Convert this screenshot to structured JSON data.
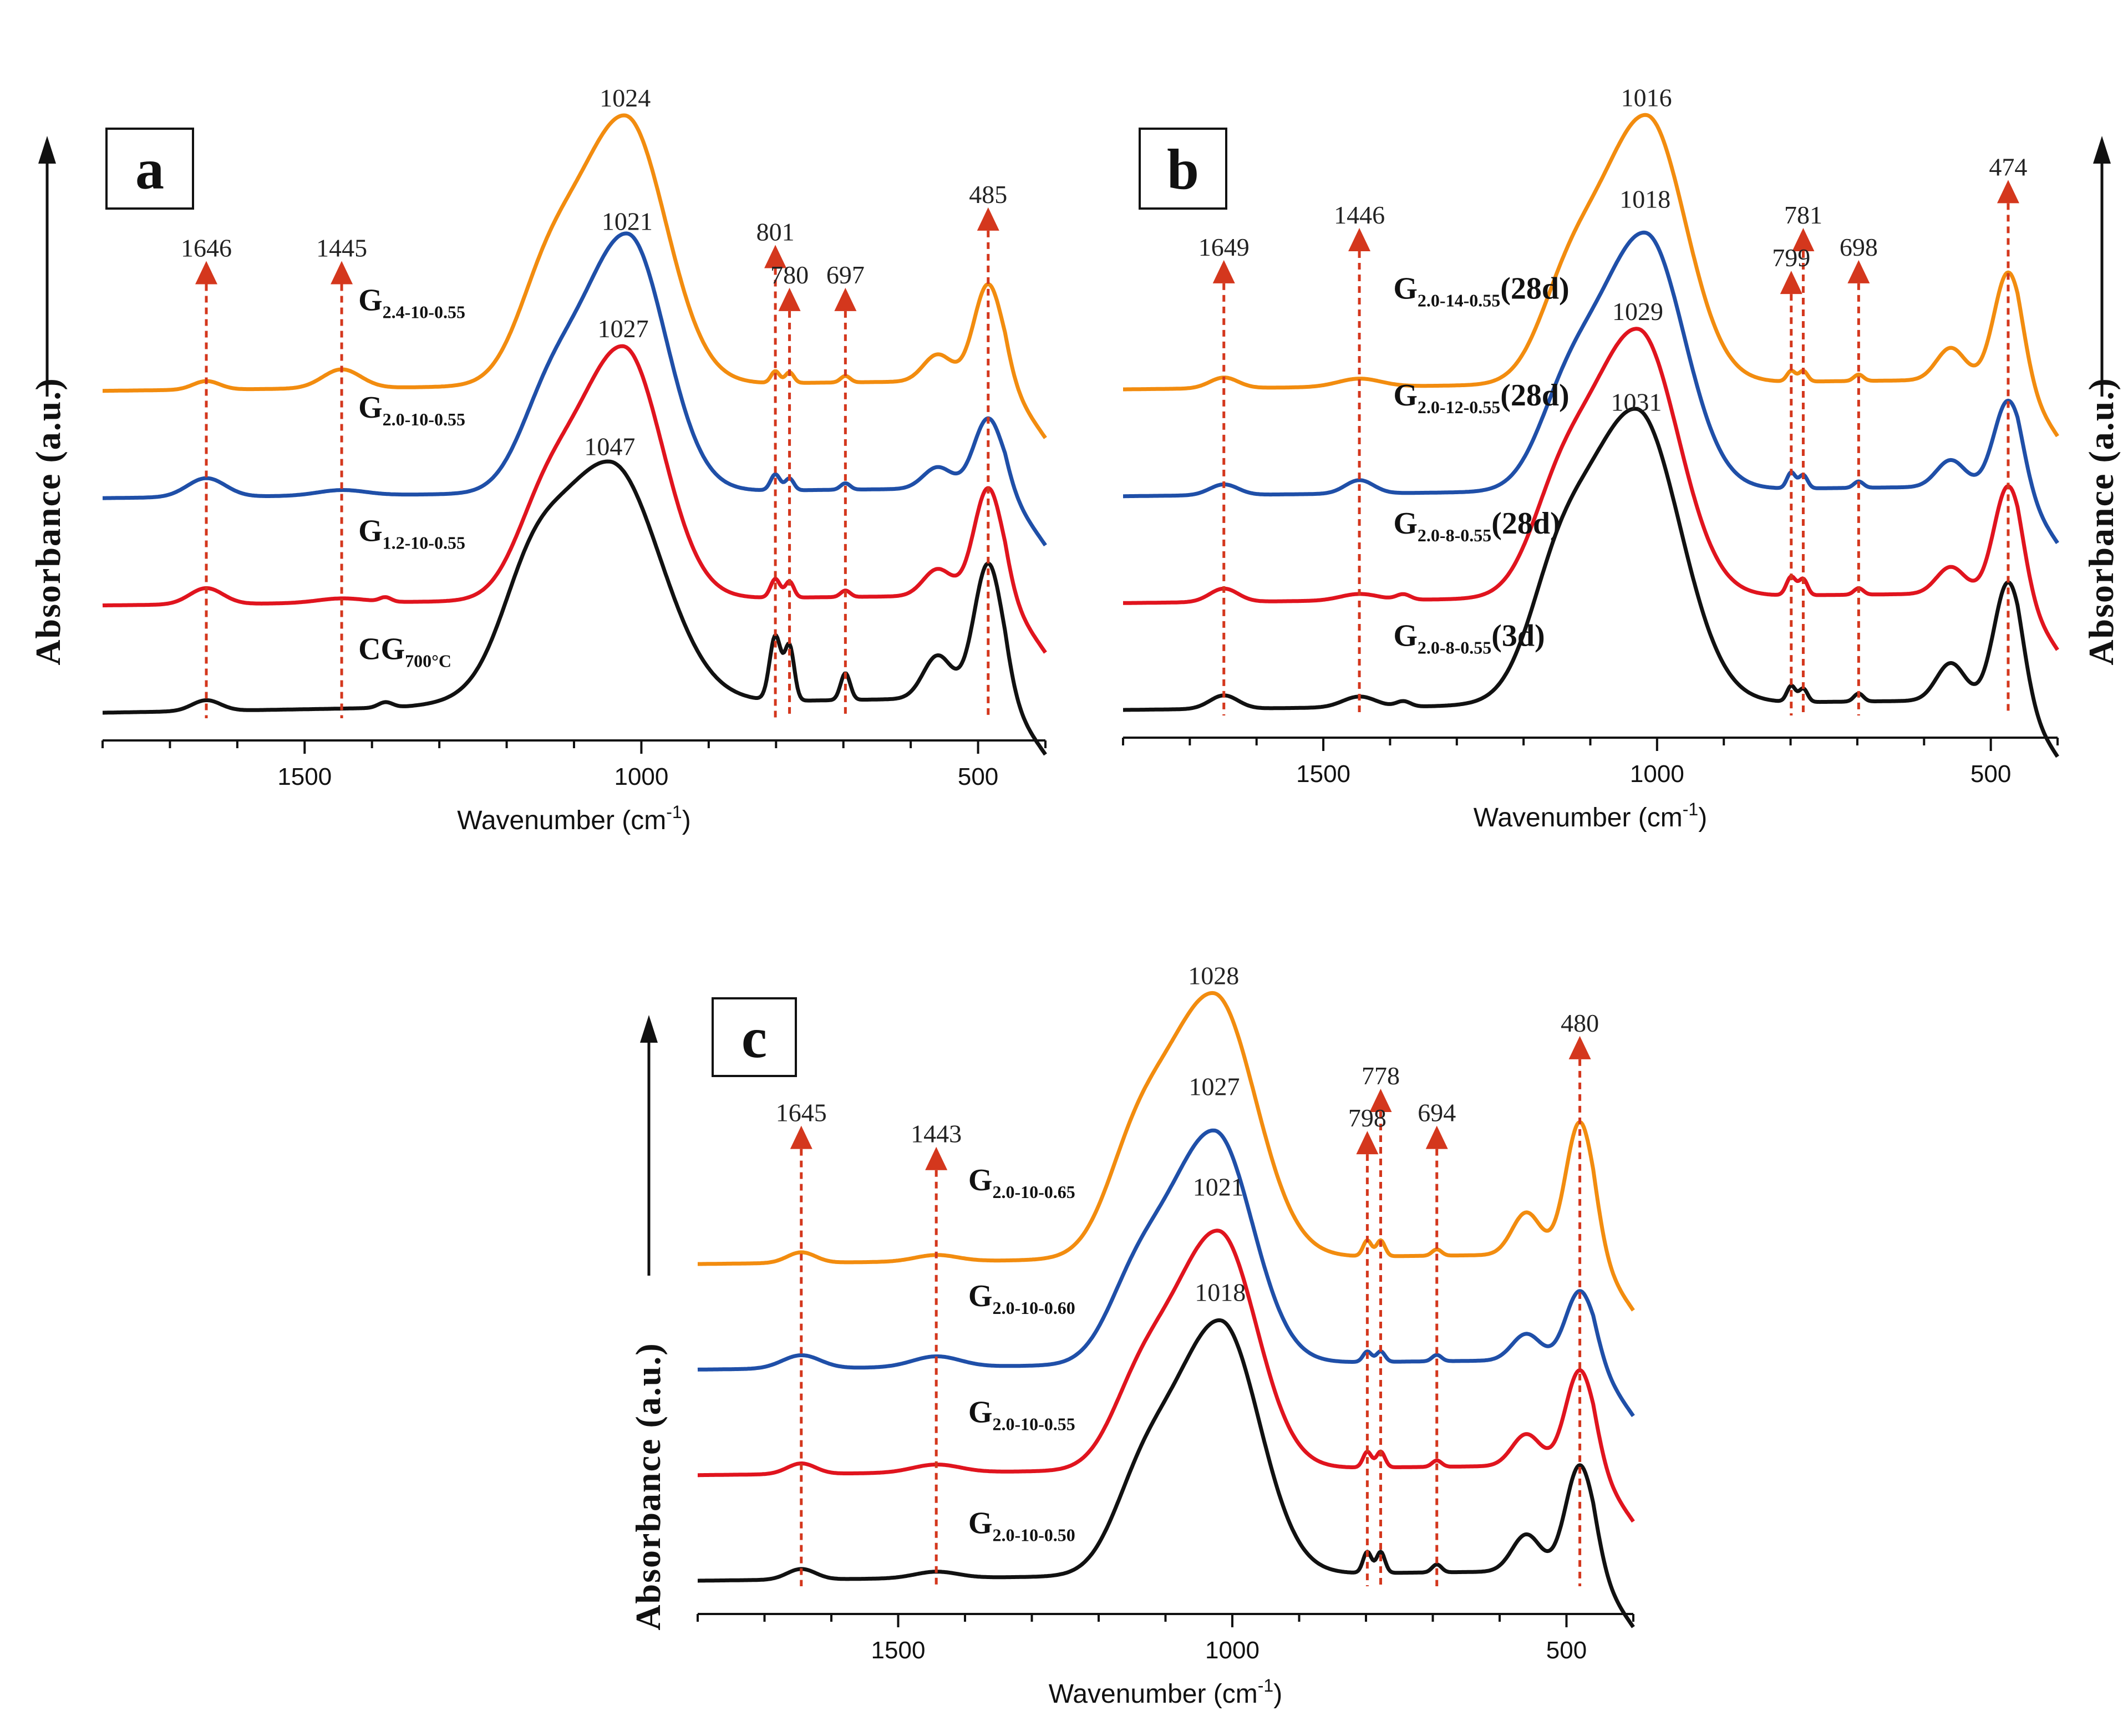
{
  "chart_data": [
    {
      "type": "line",
      "panel_label": "a",
      "xlabel": "Wavenumber (cm",
      "xlabel_sup": "-1",
      "xlabel_end": ")",
      "ylabel": "Absorbance (a.u.)",
      "xlim": [
        1800,
        400
      ],
      "x_reversed": true,
      "xticks": [
        1500,
        1000,
        500
      ],
      "marker_positions": [
        1646,
        1445,
        801,
        780,
        697,
        485
      ],
      "peak_labels": [
        {
          "text": "1646",
          "x": 1646,
          "y": 0.84
        },
        {
          "text": "1445",
          "x": 1445,
          "y": 0.84
        },
        {
          "text": "801",
          "x": 801,
          "y": 0.87
        },
        {
          "text": "780",
          "x": 780,
          "y": 0.79
        },
        {
          "text": "697",
          "x": 697,
          "y": 0.79
        },
        {
          "text": "485",
          "x": 485,
          "y": 0.94
        },
        {
          "text": "1024",
          "x": 1024,
          "y": 1.13
        },
        {
          "text": "1021",
          "x": 1021,
          "y": 0.9
        },
        {
          "text": "1027",
          "x": 1027,
          "y": 0.7
        },
        {
          "text": "1047",
          "x": 1047,
          "y": 0.48
        }
      ],
      "series": [
        {
          "name": "G",
          "subscript": "2.4-10-0.55",
          "color": "#f28c0f",
          "offset": 0.6,
          "peak": 1024,
          "peak_height": 0.5,
          "width": 85,
          "base_slope": 0.02,
          "bands": [
            [
              1646,
              0.016,
              28
            ],
            [
              1445,
              0.035,
              40
            ],
            [
              801,
              0.022,
              9
            ],
            [
              780,
              0.02,
              9
            ],
            [
              697,
              0.012,
              10
            ],
            [
              485,
              0.18,
              30
            ],
            [
              560,
              0.05,
              30
            ]
          ],
          "label_x": 1445,
          "label_y": 0.75
        },
        {
          "name": "G",
          "subscript": "2.0-10-0.55",
          "color": "#1f4fa8",
          "offset": 0.4,
          "peak": 1021,
          "peak_height": 0.48,
          "width": 80,
          "base_slope": 0.02,
          "bands": [
            [
              1646,
              0.035,
              40
            ],
            [
              1445,
              0.01,
              50
            ],
            [
              801,
              0.03,
              10
            ],
            [
              780,
              0.022,
              9
            ],
            [
              697,
              0.012,
              10
            ],
            [
              485,
              0.13,
              30
            ],
            [
              560,
              0.04,
              30
            ]
          ],
          "label_x": 1445,
          "label_y": 0.55
        },
        {
          "name": "G",
          "subscript": "1.2-10-0.55",
          "color": "#e0141e",
          "offset": 0.2,
          "peak": 1027,
          "peak_height": 0.47,
          "width": 82,
          "base_slope": 0.02,
          "bands": [
            [
              1646,
              0.03,
              35
            ],
            [
              1445,
              0.008,
              50
            ],
            [
              1380,
              0.008,
              12
            ],
            [
              801,
              0.035,
              10
            ],
            [
              780,
              0.03,
              9
            ],
            [
              697,
              0.012,
              10
            ],
            [
              485,
              0.2,
              30
            ],
            [
              560,
              0.05,
              30
            ]
          ],
          "label_x": 1445,
          "label_y": 0.32
        },
        {
          "name": "CG",
          "subscript": "700°C",
          "color": "#111111",
          "offset": 0.0,
          "peak": 1047,
          "peak_height": 0.45,
          "width": 105,
          "base_slope": 0.03,
          "bands": [
            [
              1646,
              0.02,
              30
            ],
            [
              1380,
              0.01,
              15
            ],
            [
              801,
              0.12,
              12
            ],
            [
              780,
              0.1,
              10
            ],
            [
              697,
              0.05,
              10
            ],
            [
              485,
              0.25,
              30
            ],
            [
              560,
              0.08,
              30
            ]
          ],
          "label_x": 1445,
          "label_y": 0.1
        }
      ]
    },
    {
      "type": "line",
      "panel_label": "b",
      "xlabel": "Wavenumber (cm",
      "xlabel_sup": "-1",
      "xlabel_end": ")",
      "ylabel": "Absorbance (a.u.)",
      "xlim": [
        1800,
        400
      ],
      "x_reversed": true,
      "xticks": [
        1500,
        1000,
        500
      ],
      "marker_positions": [
        1649,
        1446,
        799,
        781,
        698,
        474
      ],
      "peak_labels": [
        {
          "text": "1649",
          "x": 1649,
          "y": 0.84
        },
        {
          "text": "1446",
          "x": 1446,
          "y": 0.9
        },
        {
          "text": "799",
          "x": 799,
          "y": 0.82
        },
        {
          "text": "781",
          "x": 781,
          "y": 0.9
        },
        {
          "text": "698",
          "x": 698,
          "y": 0.84
        },
        {
          "text": "474",
          "x": 474,
          "y": 0.99
        },
        {
          "text": "1016",
          "x": 1016,
          "y": 1.13
        },
        {
          "text": "1018",
          "x": 1018,
          "y": 0.94
        },
        {
          "text": "1029",
          "x": 1029,
          "y": 0.73
        },
        {
          "text": "1031",
          "x": 1031,
          "y": 0.56
        }
      ],
      "series": [
        {
          "name": "G",
          "subscript": "2.0-14-0.55",
          "tail": "(28d)",
          "color": "#f28c0f",
          "offset": 0.6,
          "peak": 1016,
          "peak_height": 0.5,
          "width": 82,
          "base_slope": 0.02,
          "bands": [
            [
              1649,
              0.02,
              30
            ],
            [
              1446,
              0.015,
              45
            ],
            [
              799,
              0.02,
              9
            ],
            [
              781,
              0.02,
              9
            ],
            [
              698,
              0.012,
              10
            ],
            [
              474,
              0.2,
              30
            ],
            [
              560,
              0.06,
              30
            ]
          ],
          "label_x": 1420,
          "label_y": 0.77
        },
        {
          "name": "G",
          "subscript": "2.0-12-0.55",
          "tail": "(28d)",
          "color": "#1f4fa8",
          "offset": 0.4,
          "peak": 1018,
          "peak_height": 0.48,
          "width": 82,
          "base_slope": 0.02,
          "bands": [
            [
              1649,
              0.02,
              30
            ],
            [
              1446,
              0.025,
              30
            ],
            [
              799,
              0.03,
              9
            ],
            [
              781,
              0.025,
              9
            ],
            [
              698,
              0.012,
              10
            ],
            [
              474,
              0.16,
              30
            ],
            [
              560,
              0.05,
              30
            ]
          ],
          "label_x": 1420,
          "label_y": 0.57
        },
        {
          "name": "G",
          "subscript": "2.0-8-0.55",
          "tail": "(28d)",
          "color": "#e0141e",
          "offset": 0.2,
          "peak": 1029,
          "peak_height": 0.5,
          "width": 85,
          "base_slope": 0.02,
          "bands": [
            [
              1649,
              0.025,
              30
            ],
            [
              1446,
              0.012,
              40
            ],
            [
              1380,
              0.01,
              15
            ],
            [
              799,
              0.035,
              10
            ],
            [
              781,
              0.03,
              9
            ],
            [
              698,
              0.012,
              10
            ],
            [
              474,
              0.2,
              30
            ],
            [
              560,
              0.05,
              30
            ]
          ],
          "label_x": 1420,
          "label_y": 0.33
        },
        {
          "name": "G",
          "subscript": "2.0-8-0.55",
          "tail": "(3d)",
          "color": "#111111",
          "offset": 0.0,
          "peak": 1031,
          "peak_height": 0.55,
          "width": 92,
          "base_slope": 0.02,
          "bands": [
            [
              1649,
              0.025,
              30
            ],
            [
              1446,
              0.02,
              35
            ],
            [
              1380,
              0.01,
              15
            ],
            [
              799,
              0.03,
              9
            ],
            [
              781,
              0.025,
              9
            ],
            [
              698,
              0.015,
              10
            ],
            [
              474,
              0.22,
              30
            ],
            [
              560,
              0.07,
              30
            ]
          ],
          "label_x": 1420,
          "label_y": 0.12
        }
      ]
    },
    {
      "type": "line",
      "panel_label": "c",
      "xlabel": "Wavenumber (cm",
      "xlabel_sup": "-1",
      "xlabel_end": ")",
      "ylabel": "Absorbance (a.u.)",
      "xlim": [
        1800,
        400
      ],
      "x_reversed": true,
      "xticks": [
        1500,
        1000,
        500
      ],
      "marker_positions": [
        1645,
        1443,
        798,
        778,
        694,
        480
      ],
      "peak_labels": [
        {
          "text": "1645",
          "x": 1645,
          "y": 0.86
        },
        {
          "text": "1443",
          "x": 1443,
          "y": 0.82
        },
        {
          "text": "798",
          "x": 798,
          "y": 0.85
        },
        {
          "text": "778",
          "x": 778,
          "y": 0.93
        },
        {
          "text": "694",
          "x": 694,
          "y": 0.86
        },
        {
          "text": "480",
          "x": 480,
          "y": 1.03
        },
        {
          "text": "1028",
          "x": 1028,
          "y": 1.13
        },
        {
          "text": "1027",
          "x": 1027,
          "y": 0.92
        },
        {
          "text": "1021",
          "x": 1021,
          "y": 0.73
        },
        {
          "text": "1018",
          "x": 1018,
          "y": 0.53
        }
      ],
      "series": [
        {
          "name": "G",
          "subscript": "2.0-10-0.65",
          "color": "#f28c0f",
          "offset": 0.6,
          "peak": 1028,
          "peak_height": 0.5,
          "width": 88,
          "base_slope": 0.02,
          "bands": [
            [
              1645,
              0.02,
              30
            ],
            [
              1443,
              0.012,
              45
            ],
            [
              798,
              0.03,
              9
            ],
            [
              778,
              0.03,
              9
            ],
            [
              694,
              0.012,
              10
            ],
            [
              480,
              0.25,
              30
            ],
            [
              560,
              0.08,
              30
            ]
          ],
          "label_x": 1420,
          "label_y": 0.74
        },
        {
          "name": "G",
          "subscript": "2.0-10-0.60",
          "color": "#1f4fa8",
          "offset": 0.4,
          "peak": 1027,
          "peak_height": 0.44,
          "width": 80,
          "base_slope": 0.02,
          "bands": [
            [
              1645,
              0.025,
              40
            ],
            [
              1443,
              0.02,
              50
            ],
            [
              798,
              0.02,
              9
            ],
            [
              778,
              0.02,
              9
            ],
            [
              694,
              0.012,
              10
            ],
            [
              480,
              0.13,
              30
            ],
            [
              560,
              0.05,
              30
            ]
          ],
          "label_x": 1420,
          "label_y": 0.52
        },
        {
          "name": "G",
          "subscript": "2.0-10-0.55",
          "color": "#e0141e",
          "offset": 0.2,
          "peak": 1021,
          "peak_height": 0.45,
          "width": 80,
          "base_slope": 0.02,
          "bands": [
            [
              1645,
              0.02,
              30
            ],
            [
              1443,
              0.015,
              50
            ],
            [
              798,
              0.03,
              9
            ],
            [
              778,
              0.03,
              9
            ],
            [
              694,
              0.012,
              10
            ],
            [
              480,
              0.18,
              30
            ],
            [
              560,
              0.06,
              30
            ]
          ],
          "label_x": 1420,
          "label_y": 0.3
        },
        {
          "name": "G",
          "subscript": "2.0-10-0.50",
          "color": "#111111",
          "offset": 0.0,
          "peak": 1018,
          "peak_height": 0.48,
          "width": 82,
          "base_slope": 0.02,
          "bands": [
            [
              1645,
              0.02,
              30
            ],
            [
              1443,
              0.012,
              45
            ],
            [
              798,
              0.04,
              9
            ],
            [
              778,
              0.04,
              9
            ],
            [
              694,
              0.015,
              10
            ],
            [
              480,
              0.2,
              30
            ],
            [
              560,
              0.07,
              30
            ]
          ],
          "label_x": 1420,
          "label_y": 0.09
        }
      ]
    }
  ],
  "colors": {
    "marker": "#d4371d",
    "axis": "#111111"
  }
}
